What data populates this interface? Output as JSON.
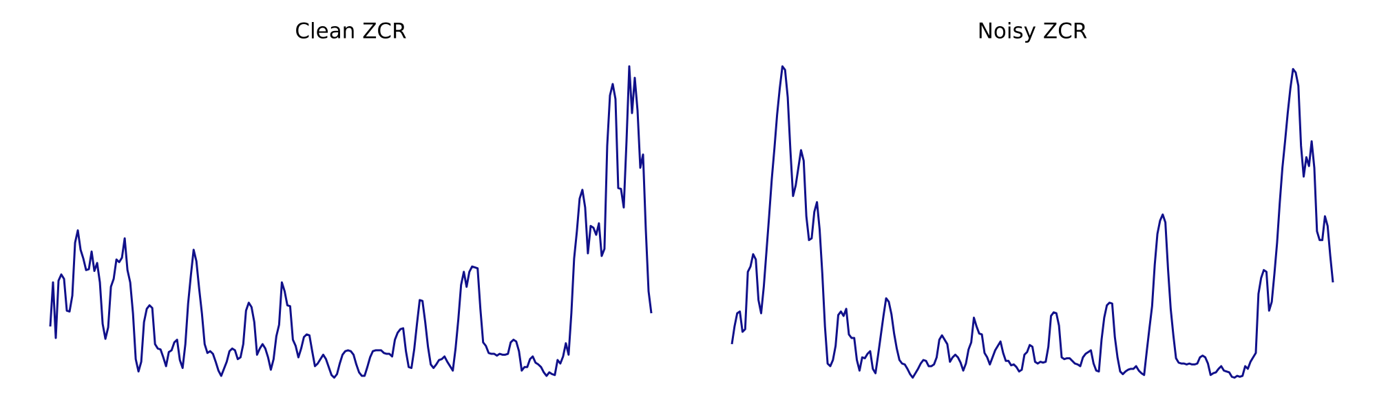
{
  "chart_data": [
    {
      "type": "line",
      "title": "Clean ZCR",
      "color": "#10108a",
      "ylim": [
        0,
        370
      ],
      "values": [
        70,
        120,
        57,
        122,
        129,
        124,
        88,
        87,
        105,
        165,
        179,
        157,
        147,
        134,
        135,
        155,
        133,
        142,
        120,
        73,
        56,
        69,
        115,
        124,
        146,
        143,
        148,
        170,
        134,
        120,
        85,
        33,
        19,
        30,
        75,
        90,
        94,
        91,
        50,
        45,
        44,
        35,
        25,
        41,
        43,
        52,
        55,
        32,
        23,
        50,
        96,
        128,
        157,
        144,
        113,
        85,
        50,
        40,
        42,
        39,
        30,
        20,
        14,
        22,
        30,
        42,
        45,
        43,
        33,
        35,
        50,
        88,
        97,
        92,
        75,
        38,
        45,
        50,
        45,
        35,
        21,
        33,
        59,
        72,
        120,
        110,
        94,
        93,
        55,
        48,
        35,
        45,
        58,
        61,
        60,
        42,
        25,
        28,
        33,
        38,
        33,
        24,
        15,
        12,
        16,
        28,
        38,
        42,
        43,
        42,
        38,
        27,
        18,
        14,
        14,
        24,
        35,
        42,
        43,
        43,
        43,
        40,
        39,
        39,
        36,
        55,
        63,
        67,
        68,
        42,
        24,
        23,
        44,
        73,
        100,
        99,
        75,
        47,
        27,
        23,
        27,
        32,
        33,
        36,
        30,
        25,
        20,
        45,
        78,
        117,
        132,
        115,
        132,
        138,
        137,
        136,
        90,
        52,
        48,
        40,
        39,
        39,
        37,
        39,
        38,
        38,
        39,
        52,
        55,
        53,
        42,
        20,
        24,
        24,
        33,
        36,
        29,
        27,
        24,
        18,
        14,
        18,
        16,
        15,
        32,
        28,
        36,
        51,
        38,
        85,
        147,
        178,
        215,
        225,
        205,
        153,
        184,
        182,
        174,
        187,
        150,
        158,
        275,
        332,
        345,
        328,
        227,
        226,
        205,
        280,
        365,
        312,
        352,
        315,
        250,
        265,
        180,
        110,
        85
      ]
    },
    {
      "type": "line",
      "title": "Noisy ZCR",
      "color": "#10108a",
      "ylim": [
        0,
        370
      ],
      "values": [
        50,
        70,
        85,
        87,
        64,
        67,
        132,
        138,
        152,
        146,
        100,
        85,
        115,
        155,
        195,
        237,
        272,
        310,
        340,
        365,
        361,
        330,
        270,
        218,
        230,
        250,
        270,
        258,
        195,
        168,
        170,
        200,
        211,
        180,
        130,
        70,
        28,
        25,
        32,
        48,
        83,
        87,
        82,
        90,
        61,
        57,
        57,
        32,
        20,
        35,
        34,
        39,
        42,
        22,
        17,
        38,
        60,
        82,
        102,
        98,
        84,
        62,
        45,
        32,
        28,
        27,
        22,
        16,
        12,
        17,
        22,
        28,
        32,
        31,
        25,
        25,
        27,
        35,
        55,
        60,
        55,
        50,
        30,
        35,
        38,
        35,
        29,
        20,
        28,
        44,
        52,
        80,
        70,
        62,
        61,
        40,
        35,
        27,
        35,
        43,
        48,
        53,
        40,
        31,
        31,
        26,
        27,
        24,
        19,
        21,
        38,
        41,
        49,
        47,
        30,
        28,
        30,
        29,
        30,
        47,
        82,
        86,
        85,
        71,
        35,
        33,
        34,
        34,
        31,
        28,
        27,
        25,
        35,
        39,
        41,
        43,
        28,
        20,
        19,
        55,
        80,
        94,
        97,
        96,
        58,
        35,
        19,
        16,
        19,
        21,
        22,
        22,
        25,
        20,
        17,
        15,
        42,
        68,
        93,
        140,
        175,
        190,
        197,
        188,
        135,
        90,
        60,
        34,
        29,
        28,
        28,
        27,
        28,
        27,
        27,
        28,
        35,
        37,
        35,
        28,
        15,
        17,
        18,
        22,
        25,
        20,
        19,
        18,
        13,
        12,
        14,
        13,
        14,
        25,
        22,
        30,
        35,
        40,
        107,
        125,
        134,
        132,
        88,
        98,
        130,
        165,
        210,
        250,
        280,
        312,
        340,
        362,
        358,
        343,
        275,
        240,
        262,
        252,
        280,
        250,
        178,
        168,
        168,
        195,
        184,
        150,
        120
      ]
    }
  ]
}
